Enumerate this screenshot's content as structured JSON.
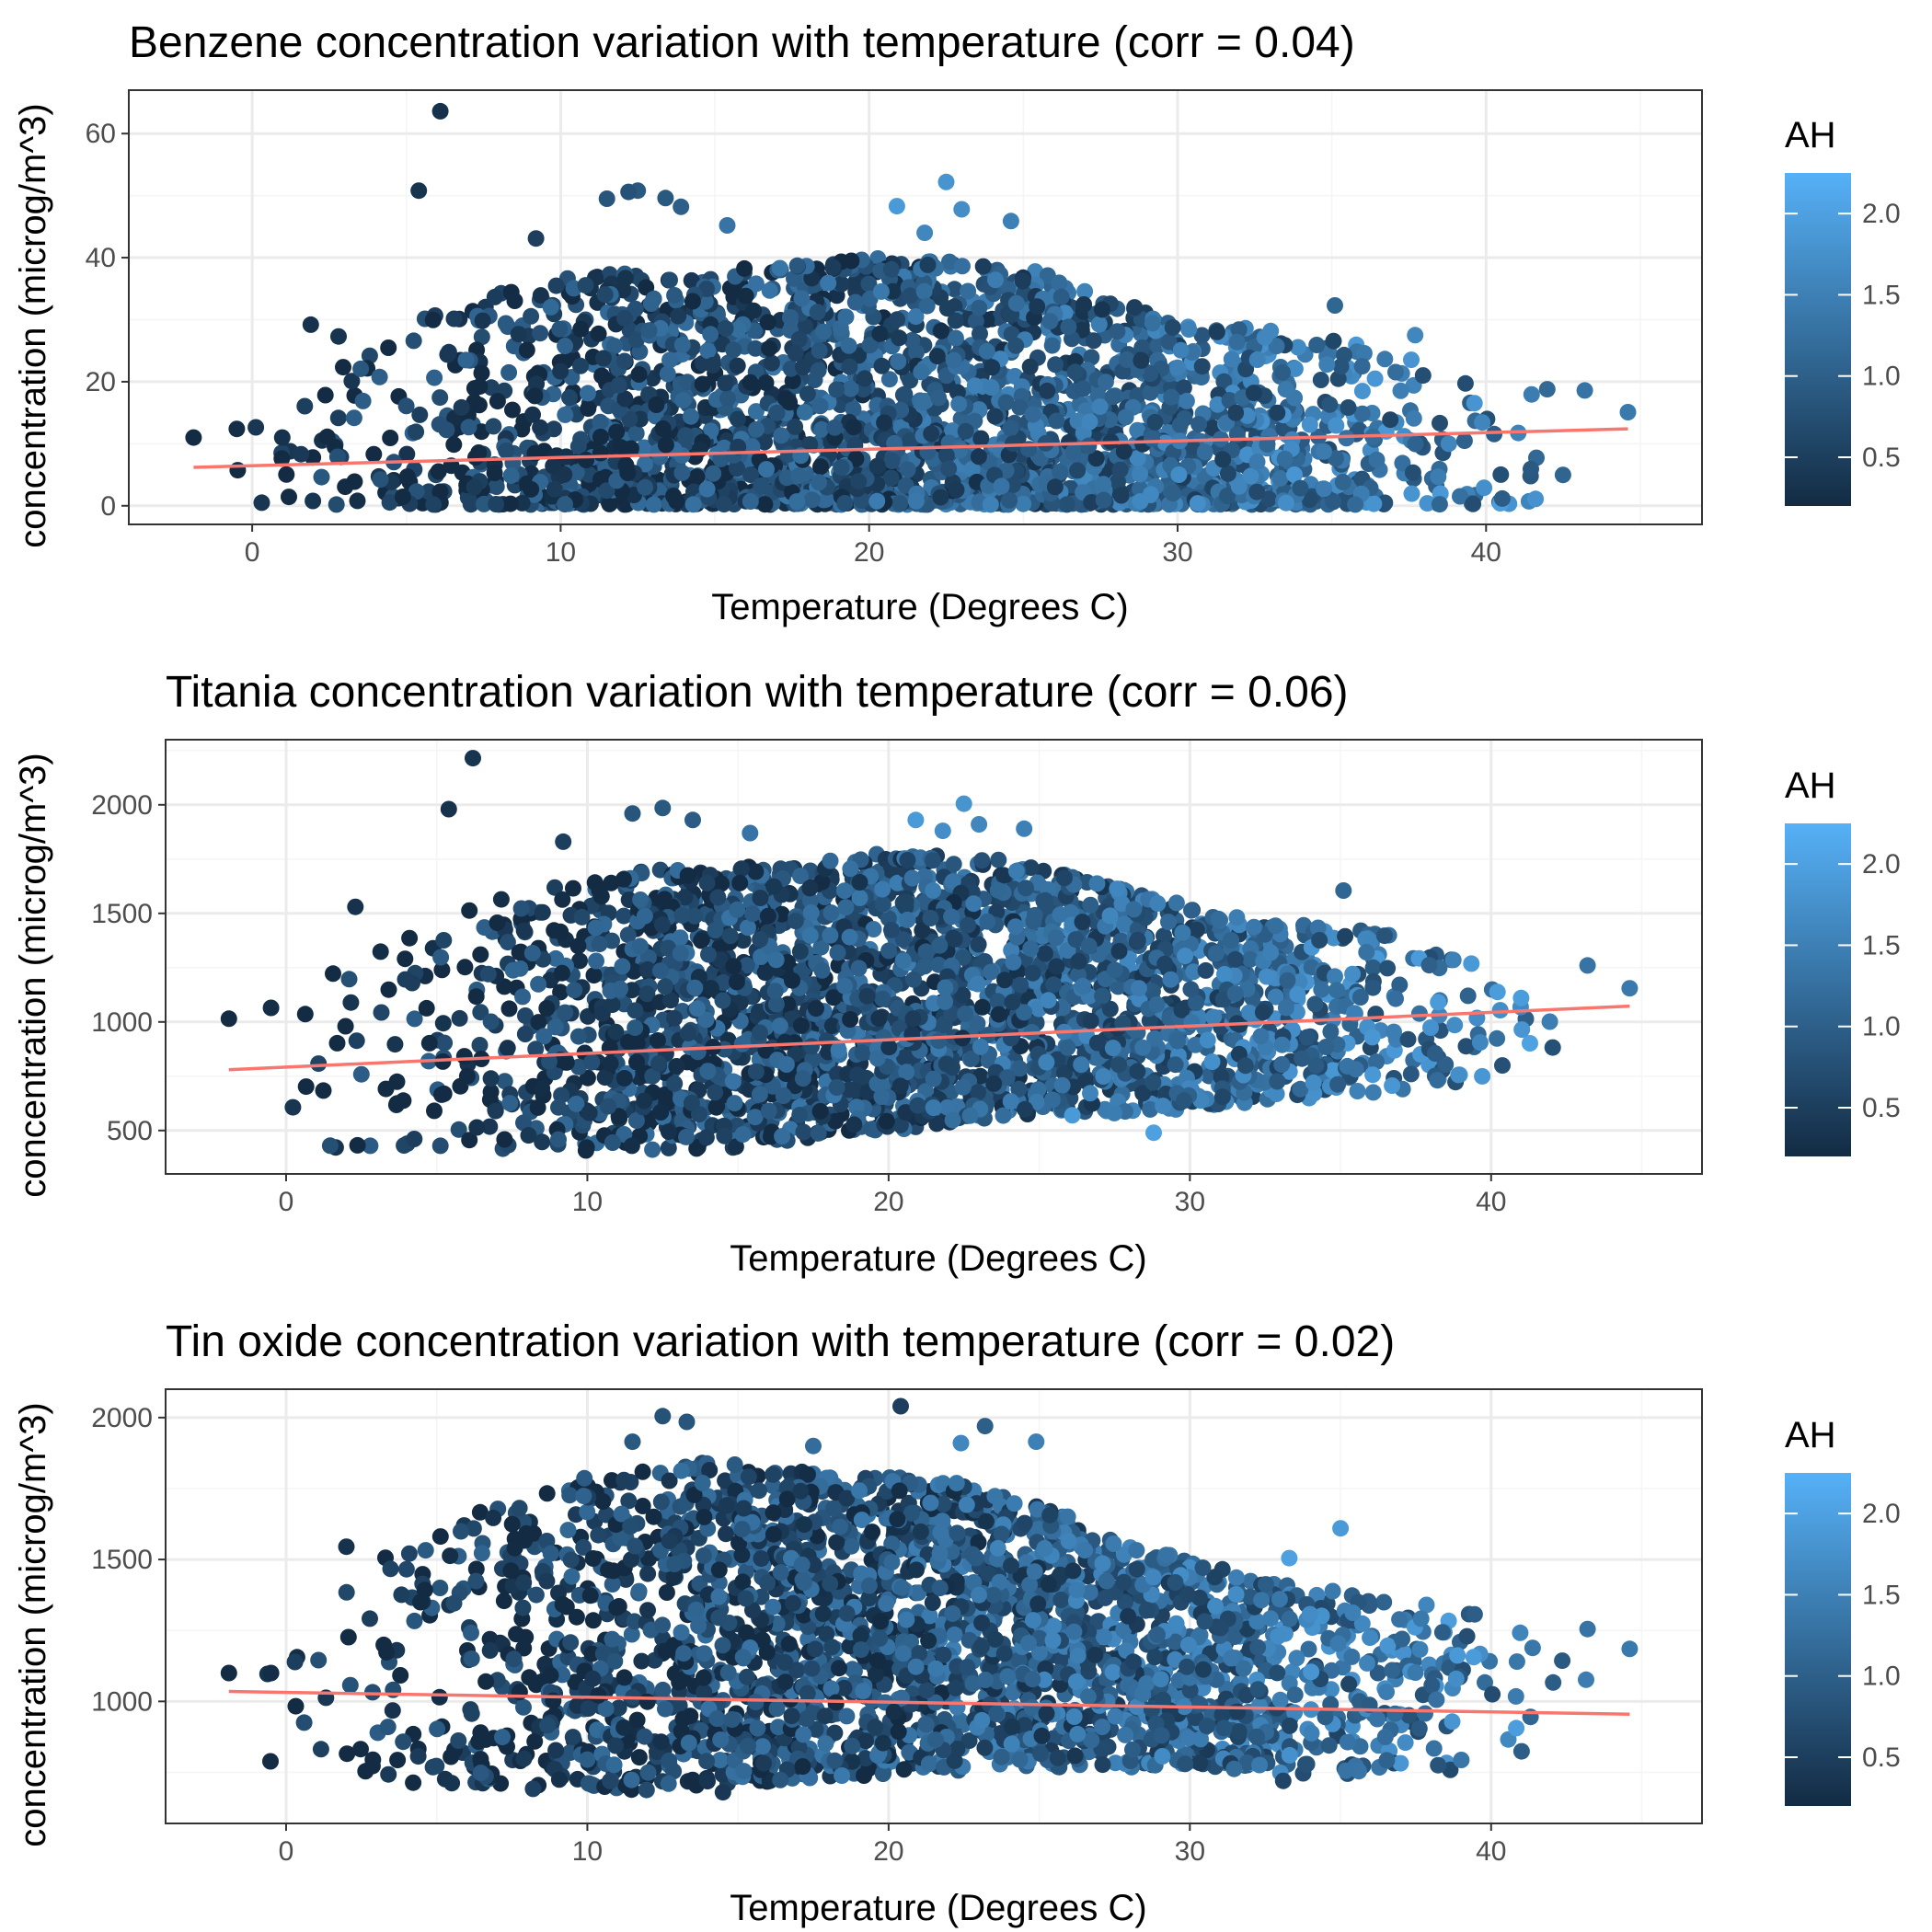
{
  "chart_data": [
    {
      "type": "scatter",
      "title": "Benzene concentration variation with temperature (corr = 0.04)",
      "xlabel": "Temperature (Degrees C)",
      "ylabel": "concentration (microg/m^3)",
      "xlim": [
        -4,
        47
      ],
      "ylim": [
        -3,
        67
      ],
      "xticks": [
        0,
        10,
        20,
        30,
        40
      ],
      "xtick_labels": [
        "0",
        "10",
        "20",
        "30",
        "40"
      ],
      "yticks": [
        0,
        20,
        40,
        60
      ],
      "ytick_labels": [
        "0",
        "20",
        "40",
        "60"
      ],
      "grid": true,
      "color_var": "AH",
      "trend_line": {
        "x": [
          -1.9,
          44.6
        ],
        "y": [
          6.2,
          12.4
        ],
        "color": "#F8766D"
      },
      "cloud": {
        "seed": 11,
        "n": 2600,
        "xmin": -1.9,
        "xmax": 44.6,
        "ymin": 0.2,
        "upper": [
          [
            -2,
            11
          ],
          [
            0,
            13
          ],
          [
            5,
            30
          ],
          [
            10,
            37
          ],
          [
            15,
            38
          ],
          [
            20,
            40
          ],
          [
            25,
            39
          ],
          [
            30,
            30
          ],
          [
            35,
            27
          ],
          [
            40,
            21
          ],
          [
            44.6,
            16
          ]
        ],
        "skew": 1.6
      },
      "outliers": [
        {
          "x": 6.1,
          "y": 63.6,
          "ah": 0.3
        },
        {
          "x": 5.4,
          "y": 50.8,
          "ah": 0.35
        },
        {
          "x": 12.5,
          "y": 50.8,
          "ah": 0.9
        },
        {
          "x": 12.2,
          "y": 50.6,
          "ah": 0.8
        },
        {
          "x": 11.5,
          "y": 49.5,
          "ah": 0.85
        },
        {
          "x": 13.4,
          "y": 49.6,
          "ah": 0.9
        },
        {
          "x": 13.9,
          "y": 48.2,
          "ah": 1.0
        },
        {
          "x": 22.5,
          "y": 52.2,
          "ah": 1.8
        },
        {
          "x": 20.9,
          "y": 48.3,
          "ah": 1.9
        },
        {
          "x": 23.0,
          "y": 47.8,
          "ah": 1.7
        },
        {
          "x": 24.6,
          "y": 45.9,
          "ah": 1.5
        },
        {
          "x": 15.4,
          "y": 45.2,
          "ah": 1.3
        },
        {
          "x": 9.2,
          "y": 43.1,
          "ah": 0.5
        },
        {
          "x": 21.8,
          "y": 44.0,
          "ah": 1.6
        },
        {
          "x": 35.1,
          "y": 32.3,
          "ah": 1.1
        },
        {
          "x": 37.7,
          "y": 27.5,
          "ah": 1.6
        },
        {
          "x": 43.2,
          "y": 18.6,
          "ah": 1.3
        },
        {
          "x": 44.6,
          "y": 15.1,
          "ah": 1.4
        },
        {
          "x": -1.9,
          "y": 11.0,
          "ah": 0.2
        },
        {
          "x": -0.5,
          "y": 12.4,
          "ah": 0.25
        },
        {
          "x": 1.9,
          "y": 29.2,
          "ah": 0.3
        },
        {
          "x": 2.8,
          "y": 27.3,
          "ah": 0.35
        }
      ]
    },
    {
      "type": "scatter",
      "title": "Titania concentration variation with temperature (corr = 0.06)",
      "xlabel": "Temperature (Degrees C)",
      "ylabel": "concentration (microg/m^3)",
      "xlim": [
        -4,
        47
      ],
      "ylim": [
        300,
        2300
      ],
      "xticks": [
        0,
        10,
        20,
        30,
        40
      ],
      "xtick_labels": [
        "0",
        "10",
        "20",
        "30",
        "40"
      ],
      "yticks": [
        500,
        1000,
        1500,
        2000
      ],
      "ytick_labels": [
        "500",
        "1000",
        "1500",
        "2000"
      ],
      "grid": true,
      "color_var": "AH",
      "trend_line": {
        "x": [
          -1.9,
          44.6
        ],
        "y": [
          780,
          1073
        ],
        "color": "#F8766D"
      },
      "cloud": {
        "seed": 23,
        "n": 2600,
        "xmin": -1.9,
        "xmax": 44.6,
        "ymin": 390,
        "upper": [
          [
            -2,
            1000
          ],
          [
            0,
            1050
          ],
          [
            3,
            1400
          ],
          [
            8,
            1600
          ],
          [
            12,
            1700
          ],
          [
            16,
            1720
          ],
          [
            20,
            1780
          ],
          [
            24,
            1750
          ],
          [
            28,
            1600
          ],
          [
            32,
            1470
          ],
          [
            36,
            1420
          ],
          [
            40,
            1320
          ],
          [
            44.6,
            1180
          ]
        ],
        "lower": [
          [
            -2,
            420
          ],
          [
            5,
            390
          ],
          [
            15,
            420
          ],
          [
            20,
            500
          ],
          [
            25,
            560
          ],
          [
            30,
            600
          ],
          [
            35,
            660
          ],
          [
            40,
            720
          ],
          [
            44.6,
            900
          ]
        ],
        "skew": 1.0
      },
      "outliers": [
        {
          "x": 6.2,
          "y": 2215,
          "ah": 0.35
        },
        {
          "x": 5.4,
          "y": 1980,
          "ah": 0.3
        },
        {
          "x": 12.5,
          "y": 1985,
          "ah": 0.9
        },
        {
          "x": 11.5,
          "y": 1960,
          "ah": 0.85
        },
        {
          "x": 13.5,
          "y": 1930,
          "ah": 0.95
        },
        {
          "x": 22.5,
          "y": 2005,
          "ah": 1.8
        },
        {
          "x": 20.9,
          "y": 1930,
          "ah": 1.9
        },
        {
          "x": 21.8,
          "y": 1880,
          "ah": 1.7
        },
        {
          "x": 23.0,
          "y": 1910,
          "ah": 1.6
        },
        {
          "x": 24.5,
          "y": 1890,
          "ah": 1.5
        },
        {
          "x": 15.4,
          "y": 1870,
          "ah": 1.3
        },
        {
          "x": 9.2,
          "y": 1830,
          "ah": 0.5
        },
        {
          "x": 35.1,
          "y": 1605,
          "ah": 1.1
        },
        {
          "x": 43.2,
          "y": 1260,
          "ah": 1.3
        },
        {
          "x": 44.6,
          "y": 1155,
          "ah": 1.4
        },
        {
          "x": -1.9,
          "y": 1015,
          "ah": 0.2
        },
        {
          "x": -0.5,
          "y": 1065,
          "ah": 0.25
        },
        {
          "x": 2.3,
          "y": 1530,
          "ah": 0.3
        },
        {
          "x": 28.8,
          "y": 490,
          "ah": 2.0
        },
        {
          "x": 26.1,
          "y": 570,
          "ah": 1.9
        }
      ]
    },
    {
      "type": "scatter",
      "title": "Tin oxide concentration variation with temperature (corr = 0.02)",
      "xlabel": "Temperature (Degrees C)",
      "ylabel": "concentration (microg/m^3)",
      "xlim": [
        -4,
        47
      ],
      "ylim": [
        570,
        2100
      ],
      "xticks": [
        0,
        10,
        20,
        30,
        40
      ],
      "xtick_labels": [
        "0",
        "10",
        "20",
        "30",
        "40"
      ],
      "yticks": [
        1000,
        1500,
        2000
      ],
      "ytick_labels": [
        "1000",
        "1500",
        "2000"
      ],
      "grid": true,
      "color_var": "AH",
      "trend_line": {
        "x": [
          -1.9,
          44.6
        ],
        "y": [
          1035,
          955
        ],
        "color": "#F8766D"
      },
      "cloud": {
        "seed": 37,
        "n": 2600,
        "xmin": -1.9,
        "xmax": 44.6,
        "ymin": 680,
        "upper": [
          [
            -2,
            1100
          ],
          [
            0,
            1150
          ],
          [
            3,
            1500
          ],
          [
            7,
            1700
          ],
          [
            10,
            1800
          ],
          [
            14,
            1850
          ],
          [
            18,
            1800
          ],
          [
            22,
            1780
          ],
          [
            25,
            1700
          ],
          [
            28,
            1550
          ],
          [
            32,
            1450
          ],
          [
            36,
            1380
          ],
          [
            40,
            1330
          ],
          [
            44.6,
            1190
          ]
        ],
        "lower": [
          [
            -2,
            780
          ],
          [
            5,
            700
          ],
          [
            10,
            680
          ],
          [
            15,
            700
          ],
          [
            20,
            740
          ],
          [
            25,
            770
          ],
          [
            30,
            760
          ],
          [
            35,
            740
          ],
          [
            40,
            760
          ],
          [
            44.6,
            900
          ]
        ],
        "skew": 1.0
      },
      "outliers": [
        {
          "x": 20.4,
          "y": 2040,
          "ah": 0.5
        },
        {
          "x": 12.5,
          "y": 2005,
          "ah": 0.8
        },
        {
          "x": 13.3,
          "y": 1985,
          "ah": 0.85
        },
        {
          "x": 23.2,
          "y": 1970,
          "ah": 1.0
        },
        {
          "x": 24.9,
          "y": 1915,
          "ah": 1.5
        },
        {
          "x": 22.4,
          "y": 1910,
          "ah": 1.6
        },
        {
          "x": 11.5,
          "y": 1915,
          "ah": 0.9
        },
        {
          "x": 17.5,
          "y": 1900,
          "ah": 1.2
        },
        {
          "x": 35.0,
          "y": 1610,
          "ah": 1.9
        },
        {
          "x": 33.3,
          "y": 1505,
          "ah": 2.0
        },
        {
          "x": 43.2,
          "y": 1255,
          "ah": 1.3
        },
        {
          "x": 44.6,
          "y": 1185,
          "ah": 1.4
        },
        {
          "x": -1.9,
          "y": 1100,
          "ah": 0.2
        },
        {
          "x": -0.5,
          "y": 1100,
          "ah": 0.25
        },
        {
          "x": 2.0,
          "y": 1545,
          "ah": 0.3
        },
        {
          "x": 14.5,
          "y": 680,
          "ah": 0.4
        },
        {
          "x": 33.1,
          "y": 720,
          "ah": 0.6
        }
      ]
    }
  ],
  "legends": [
    {
      "title": "AH",
      "min": 0.2,
      "max": 2.25,
      "ticks": [
        0.5,
        1.0,
        1.5,
        2.0
      ],
      "tick_labels": [
        "0.5",
        "1.0",
        "1.5",
        "2.0"
      ],
      "low_color": "#132B43",
      "high_color": "#56B1F7"
    },
    {
      "title": "AH",
      "min": 0.2,
      "max": 2.25,
      "ticks": [
        0.5,
        1.0,
        1.5,
        2.0
      ],
      "tick_labels": [
        "0.5",
        "1.0",
        "1.5",
        "2.0"
      ],
      "low_color": "#132B43",
      "high_color": "#56B1F7"
    },
    {
      "title": "AH",
      "min": 0.2,
      "max": 2.25,
      "ticks": [
        0.5,
        1.0,
        1.5,
        2.0
      ],
      "tick_labels": [
        "0.5",
        "1.0",
        "1.5",
        "2.0"
      ],
      "low_color": "#132B43",
      "high_color": "#56B1F7"
    }
  ],
  "colors": {
    "panel_border": "#333333",
    "grid_major": "#EBEBEB",
    "grid_minor": "#F5F5F5",
    "trend": "#F8766D"
  }
}
